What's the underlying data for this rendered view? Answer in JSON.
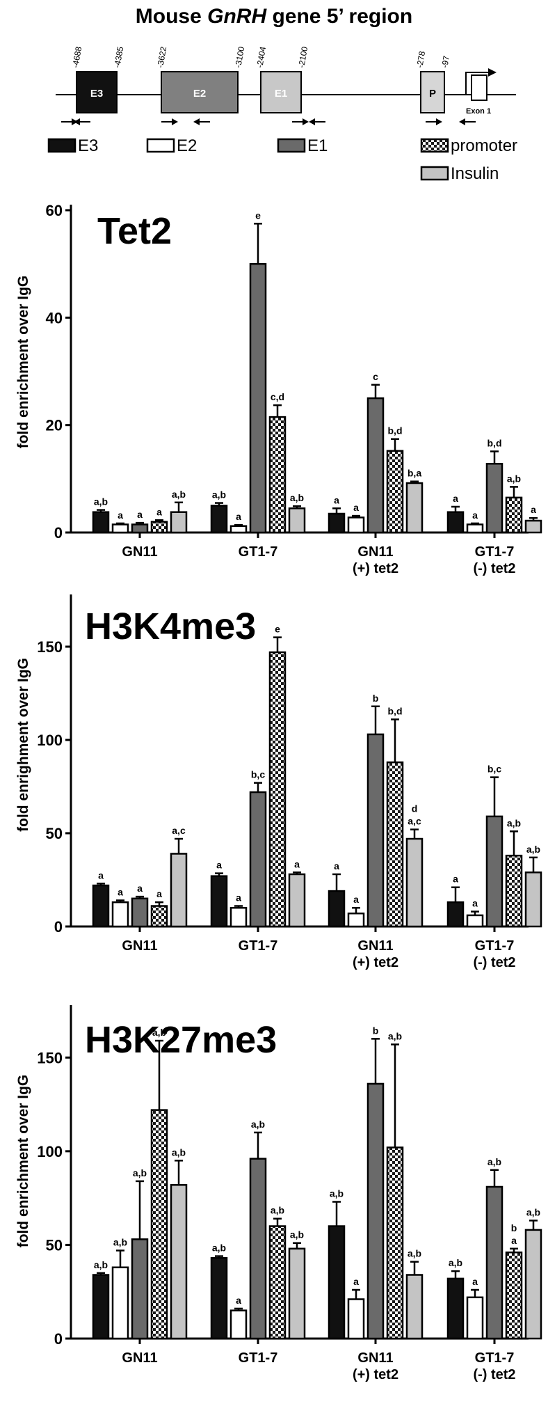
{
  "diagram": {
    "title_prefix": "Mouse ",
    "title_italic": "GnRH",
    "title_suffix": " gene 5’ region",
    "boxes": [
      {
        "label": "E3",
        "coord_left": "-4688",
        "coord_right": "-4385",
        "fill": "#111111",
        "text_color": "#ffffff"
      },
      {
        "label": "E2",
        "coord_left": "-3622",
        "coord_right": "-3100",
        "fill": "#808080",
        "text_color": "#ffffff"
      },
      {
        "label": "E1",
        "coord_left": "-2404",
        "coord_right": "-2100",
        "fill": "#c8c8c8",
        "text_color": "#ffffff"
      },
      {
        "label": "P",
        "coord_left": "-278",
        "coord_right": "-97",
        "fill": "#d6d6d6",
        "text_color": "#000000"
      }
    ],
    "exon_label": "Exon 1"
  },
  "legend": {
    "items": [
      {
        "label": "E3",
        "style": "black"
      },
      {
        "label": "E2",
        "style": "white"
      },
      {
        "label": "E1",
        "style": "dark"
      },
      {
        "label": "promoter",
        "style": "checker"
      },
      {
        "label": "Insulin",
        "style": "light"
      }
    ]
  },
  "chart_data": [
    {
      "type": "bar",
      "title": "Tet2",
      "ylabel": "fold enrichment over IgG",
      "ylim": [
        0,
        60
      ],
      "yticks": [
        0,
        20,
        40,
        60
      ],
      "categories": [
        "GN11",
        "GT1-7",
        "GN11\n(+) tet2",
        "GT1-7\n(-) tet2"
      ],
      "series": [
        {
          "name": "E3",
          "values": [
            3.8,
            5.0,
            3.5,
            3.8
          ],
          "errors": [
            0.4,
            0.5,
            1.0,
            1.0
          ],
          "labels": [
            "a,b",
            "a,b",
            "a",
            "a"
          ]
        },
        {
          "name": "E2",
          "values": [
            1.5,
            1.2,
            2.8,
            1.5
          ],
          "errors": [
            0.2,
            0.2,
            0.3,
            0.2
          ],
          "labels": [
            "a",
            "a",
            "a",
            "a"
          ]
        },
        {
          "name": "E1",
          "values": [
            1.5,
            50.0,
            25.0,
            12.8
          ],
          "errors": [
            0.3,
            7.5,
            2.5,
            2.3
          ],
          "labels": [
            "a",
            "e",
            "c",
            "b,d"
          ]
        },
        {
          "name": "promoter",
          "values": [
            2.0,
            21.5,
            15.2,
            6.5
          ],
          "errors": [
            0.3,
            2.2,
            2.2,
            2.0
          ],
          "labels": [
            "a",
            "c,d",
            "b,d",
            "a,b"
          ]
        },
        {
          "name": "Insulin",
          "values": [
            3.8,
            4.5,
            9.2,
            2.2
          ],
          "errors": [
            1.8,
            0.4,
            0.3,
            0.5
          ],
          "labels": [
            "a,b",
            "a,b",
            "b,a",
            "a"
          ]
        }
      ]
    },
    {
      "type": "bar",
      "title": "H3K4me3",
      "ylabel": "fold enrighment over IgG",
      "ylim": [
        0,
        175
      ],
      "yticks": [
        0,
        50,
        100,
        150
      ],
      "categories": [
        "GN11",
        "GT1-7",
        "GN11\n(+) tet2",
        "GT1-7\n(-) tet2"
      ],
      "series": [
        {
          "name": "E3",
          "values": [
            22,
            27,
            19,
            13
          ],
          "errors": [
            1,
            1.5,
            9,
            8
          ],
          "labels": [
            "a",
            "a",
            "a",
            "a"
          ]
        },
        {
          "name": "E2",
          "values": [
            13,
            10,
            7,
            6
          ],
          "errors": [
            1,
            1,
            3,
            2
          ],
          "labels": [
            "a",
            "a",
            "a",
            "a"
          ]
        },
        {
          "name": "E1",
          "values": [
            15,
            72,
            103,
            59
          ],
          "errors": [
            1,
            5,
            15,
            21
          ],
          "labels": [
            "a",
            "b,c",
            "b",
            "b,c"
          ]
        },
        {
          "name": "promoter",
          "values": [
            11,
            147,
            88,
            38
          ],
          "errors": [
            2,
            8,
            23,
            13
          ],
          "labels": [
            "a",
            "e",
            "b,d",
            "a,b"
          ]
        },
        {
          "name": "Insulin",
          "values": [
            39,
            28,
            47,
            29
          ],
          "errors": [
            8,
            1,
            5,
            8
          ],
          "labels": [
            "a,c",
            "a",
            "a,c",
            "a,b"
          ],
          "top_labels": [
            "",
            "",
            "d",
            ""
          ]
        }
      ]
    },
    {
      "type": "bar",
      "title": "H3K27me3",
      "ylabel": "fold enrichment over IgG",
      "ylim": [
        0,
        175
      ],
      "yticks": [
        0,
        50,
        100,
        150
      ],
      "categories": [
        "GN11",
        "GT1-7",
        "GN11\n(+) tet2",
        "GT1-7\n(-) tet2"
      ],
      "series": [
        {
          "name": "E3",
          "values": [
            34,
            43,
            60,
            32
          ],
          "errors": [
            1,
            1,
            13,
            4
          ],
          "labels": [
            "a,b",
            "a,b",
            "a,b",
            "a,b"
          ]
        },
        {
          "name": "E2",
          "values": [
            38,
            15,
            21,
            22
          ],
          "errors": [
            9,
            1,
            5,
            4
          ],
          "labels": [
            "a,b",
            "a",
            "a",
            "a"
          ]
        },
        {
          "name": "E1",
          "values": [
            53,
            96,
            136,
            81
          ],
          "errors": [
            31,
            14,
            24,
            9
          ],
          "labels": [
            "a,b",
            "a,b",
            "b",
            "a,b"
          ]
        },
        {
          "name": "promoter",
          "values": [
            122,
            60,
            102,
            46
          ],
          "errors": [
            37,
            4,
            55,
            2
          ],
          "labels": [
            "a,b",
            "a,b",
            "a,b",
            "a"
          ],
          "top_labels": [
            "",
            "",
            "",
            "b"
          ]
        },
        {
          "name": "Insulin",
          "values": [
            82,
            48,
            34,
            58
          ],
          "errors": [
            13,
            3,
            7,
            5
          ],
          "labels": [
            "a,b",
            "a,b",
            "a,b",
            "a,b"
          ]
        }
      ]
    }
  ]
}
